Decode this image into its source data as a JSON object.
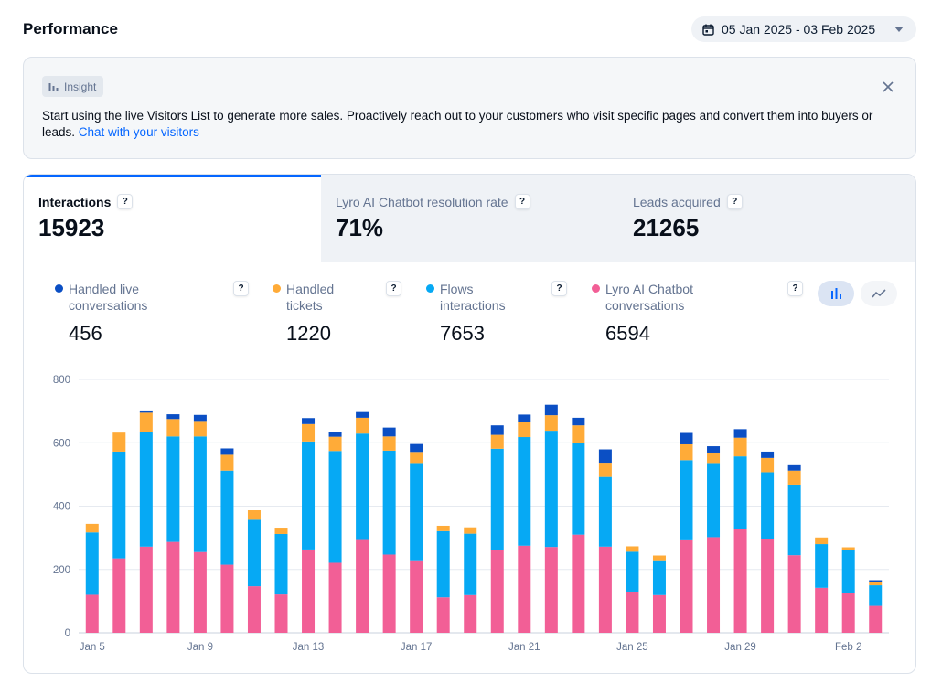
{
  "header": {
    "title": "Performance",
    "date_range": "05 Jan 2025 - 03 Feb 2025"
  },
  "insight": {
    "tag": "Insight",
    "text": "Start using the live Visitors List to generate more sales. Proactively reach out to your customers who visit specific pages and convert them into buyers or leads. ",
    "link": "Chat with your visitors"
  },
  "tabs": [
    {
      "label": "Interactions",
      "value": "15923",
      "active": true
    },
    {
      "label": "Lyro AI Chatbot resolution rate",
      "value": "71%",
      "active": false
    },
    {
      "label": "Leads acquired",
      "value": "21265",
      "active": false
    }
  ],
  "help_glyph": "?",
  "metrics": [
    {
      "label": "Handled live\nconversations",
      "value": "456",
      "color": "#0b4fc4"
    },
    {
      "label": "Handled\ntickets",
      "value": "1220",
      "color": "#ffab38"
    },
    {
      "label": "Flows\ninteractions",
      "value": "7653",
      "color": "#06a9f4"
    },
    {
      "label": "Lyro AI Chatbot\nconversations",
      "value": "6594",
      "color": "#f25f96"
    }
  ],
  "view_toggle": {
    "active": "bar-chart-icon",
    "inactive": "line-chart-icon"
  },
  "chart_data": {
    "type": "bar",
    "stacked": true,
    "title": "",
    "xlabel": "",
    "ylabel": "",
    "ylim": [
      0,
      800
    ],
    "yticks": [
      0,
      200,
      400,
      600,
      800
    ],
    "grid": true,
    "categories": [
      "Jan 5",
      "Jan 6",
      "Jan 7",
      "Jan 8",
      "Jan 9",
      "Jan 10",
      "Jan 11",
      "Jan 12",
      "Jan 13",
      "Jan 14",
      "Jan 15",
      "Jan 16",
      "Jan 17",
      "Jan 18",
      "Jan 19",
      "Jan 20",
      "Jan 21",
      "Jan 22",
      "Jan 23",
      "Jan 24",
      "Jan 25",
      "Jan 26",
      "Jan 27",
      "Jan 28",
      "Jan 29",
      "Jan 30",
      "Jan 31",
      "Feb 1",
      "Feb 2",
      "Feb 3"
    ],
    "x_tick_labels": [
      "Jan 5",
      "",
      "",
      "",
      "Jan 9",
      "",
      "",
      "",
      "Jan 13",
      "",
      "",
      "",
      "Jan 17",
      "",
      "",
      "",
      "Jan 21",
      "",
      "",
      "",
      "Jan 25",
      "",
      "",
      "",
      "Jan 29",
      "",
      "",
      "",
      "Feb 2",
      ""
    ],
    "series": [
      {
        "name": "Lyro AI Chatbot conversations",
        "color": "#f25f96",
        "values": [
          120,
          235,
          272,
          287,
          255,
          215,
          147,
          121,
          263,
          221,
          293,
          247,
          229,
          112,
          119,
          260,
          275,
          271,
          310,
          272,
          130,
          119,
          292,
          302,
          327,
          296,
          245,
          142,
          125,
          85
        ]
      },
      {
        "name": "Flows interactions",
        "color": "#06a9f4",
        "values": [
          197,
          337,
          363,
          333,
          365,
          297,
          210,
          191,
          341,
          353,
          336,
          328,
          307,
          209,
          194,
          321,
          343,
          367,
          290,
          220,
          126,
          110,
          253,
          234,
          230,
          211,
          223,
          138,
          135,
          65
        ]
      },
      {
        "name": "Handled tickets",
        "color": "#ffab38",
        "values": [
          27,
          60,
          60,
          55,
          49,
          50,
          30,
          20,
          55,
          45,
          50,
          45,
          35,
          17,
          20,
          44,
          47,
          49,
          55,
          45,
          17,
          15,
          50,
          33,
          59,
          45,
          44,
          21,
          10,
          10
        ]
      },
      {
        "name": "Handled live conversations",
        "color": "#0b4fc4",
        "values": [
          0,
          0,
          7,
          15,
          19,
          20,
          0,
          0,
          19,
          16,
          18,
          28,
          25,
          0,
          0,
          30,
          24,
          33,
          24,
          42,
          0,
          0,
          36,
          20,
          27,
          20,
          17,
          0,
          0,
          6
        ]
      }
    ]
  }
}
